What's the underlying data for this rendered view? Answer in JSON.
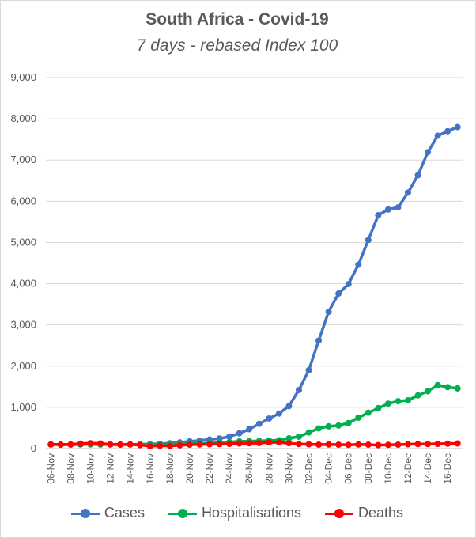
{
  "chart_data": {
    "type": "line",
    "title": "South Africa - Covid-19",
    "subtitle": "7 days - rebased Index 100",
    "xlabel": "",
    "ylabel": "",
    "ylim": [
      0,
      9000
    ],
    "yticks": [
      0,
      1000,
      2000,
      3000,
      4000,
      5000,
      6000,
      7000,
      8000,
      9000
    ],
    "ytick_labels": [
      "0",
      "1,000",
      "2,000",
      "3,000",
      "4,000",
      "5,000",
      "6,000",
      "7,000",
      "8,000",
      "9,000"
    ],
    "grid": "horizontal",
    "legend": "bottom",
    "x": [
      "06-Nov",
      "07-Nov",
      "08-Nov",
      "09-Nov",
      "10-Nov",
      "11-Nov",
      "12-Nov",
      "13-Nov",
      "14-Nov",
      "15-Nov",
      "16-Nov",
      "17-Nov",
      "18-Nov",
      "19-Nov",
      "20-Nov",
      "21-Nov",
      "22-Nov",
      "23-Nov",
      "24-Nov",
      "25-Nov",
      "26-Nov",
      "27-Nov",
      "28-Nov",
      "29-Nov",
      "30-Nov",
      "01-Dec",
      "02-Dec",
      "03-Dec",
      "04-Dec",
      "05-Dec",
      "06-Dec",
      "07-Dec",
      "08-Dec",
      "09-Dec",
      "10-Dec",
      "11-Dec",
      "12-Dec",
      "13-Dec",
      "14-Dec",
      "15-Dec",
      "16-Dec",
      "17-Dec"
    ],
    "x_tick_labels": [
      "06-Nov",
      "08-Nov",
      "10-Nov",
      "12-Nov",
      "14-Nov",
      "16-Nov",
      "18-Nov",
      "20-Nov",
      "22-Nov",
      "24-Nov",
      "26-Nov",
      "28-Nov",
      "30-Nov",
      "02-Dec",
      "04-Dec",
      "06-Dec",
      "08-Dec",
      "10-Dec",
      "12-Dec",
      "14-Dec",
      "16-Dec"
    ],
    "series": [
      {
        "name": "Cases",
        "color": "#4472c4",
        "values": [
          100,
          95,
          95,
          100,
          105,
          100,
          100,
          98,
          100,
          105,
          110,
          118,
          130,
          150,
          175,
          195,
          220,
          245,
          290,
          370,
          470,
          600,
          730,
          850,
          1030,
          1420,
          1900,
          2620,
          3320,
          3760,
          3990,
          4460,
          5060,
          5660,
          5800,
          5850,
          6210,
          6630,
          7190,
          7590,
          7700,
          7800
        ]
      },
      {
        "name": "Hospitalisations",
        "color": "#00b050",
        "values": [
          100,
          100,
          100,
          105,
          100,
          100,
          100,
          98,
          100,
          100,
          100,
          100,
          105,
          110,
          120,
          125,
          135,
          145,
          160,
          175,
          180,
          185,
          195,
          205,
          250,
          290,
          390,
          490,
          540,
          560,
          620,
          750,
          870,
          980,
          1090,
          1150,
          1170,
          1290,
          1390,
          1540,
          1490,
          1460
        ]
      },
      {
        "name": "Deaths",
        "color": "#ff0000",
        "values": [
          100,
          95,
          100,
          120,
          130,
          125,
          100,
          95,
          100,
          85,
          60,
          70,
          65,
          80,
          95,
          100,
          105,
          110,
          115,
          125,
          130,
          135,
          150,
          150,
          130,
          110,
          105,
          95,
          100,
          95,
          90,
          100,
          95,
          85,
          90,
          95,
          105,
          110,
          110,
          115,
          120,
          125
        ]
      }
    ]
  }
}
